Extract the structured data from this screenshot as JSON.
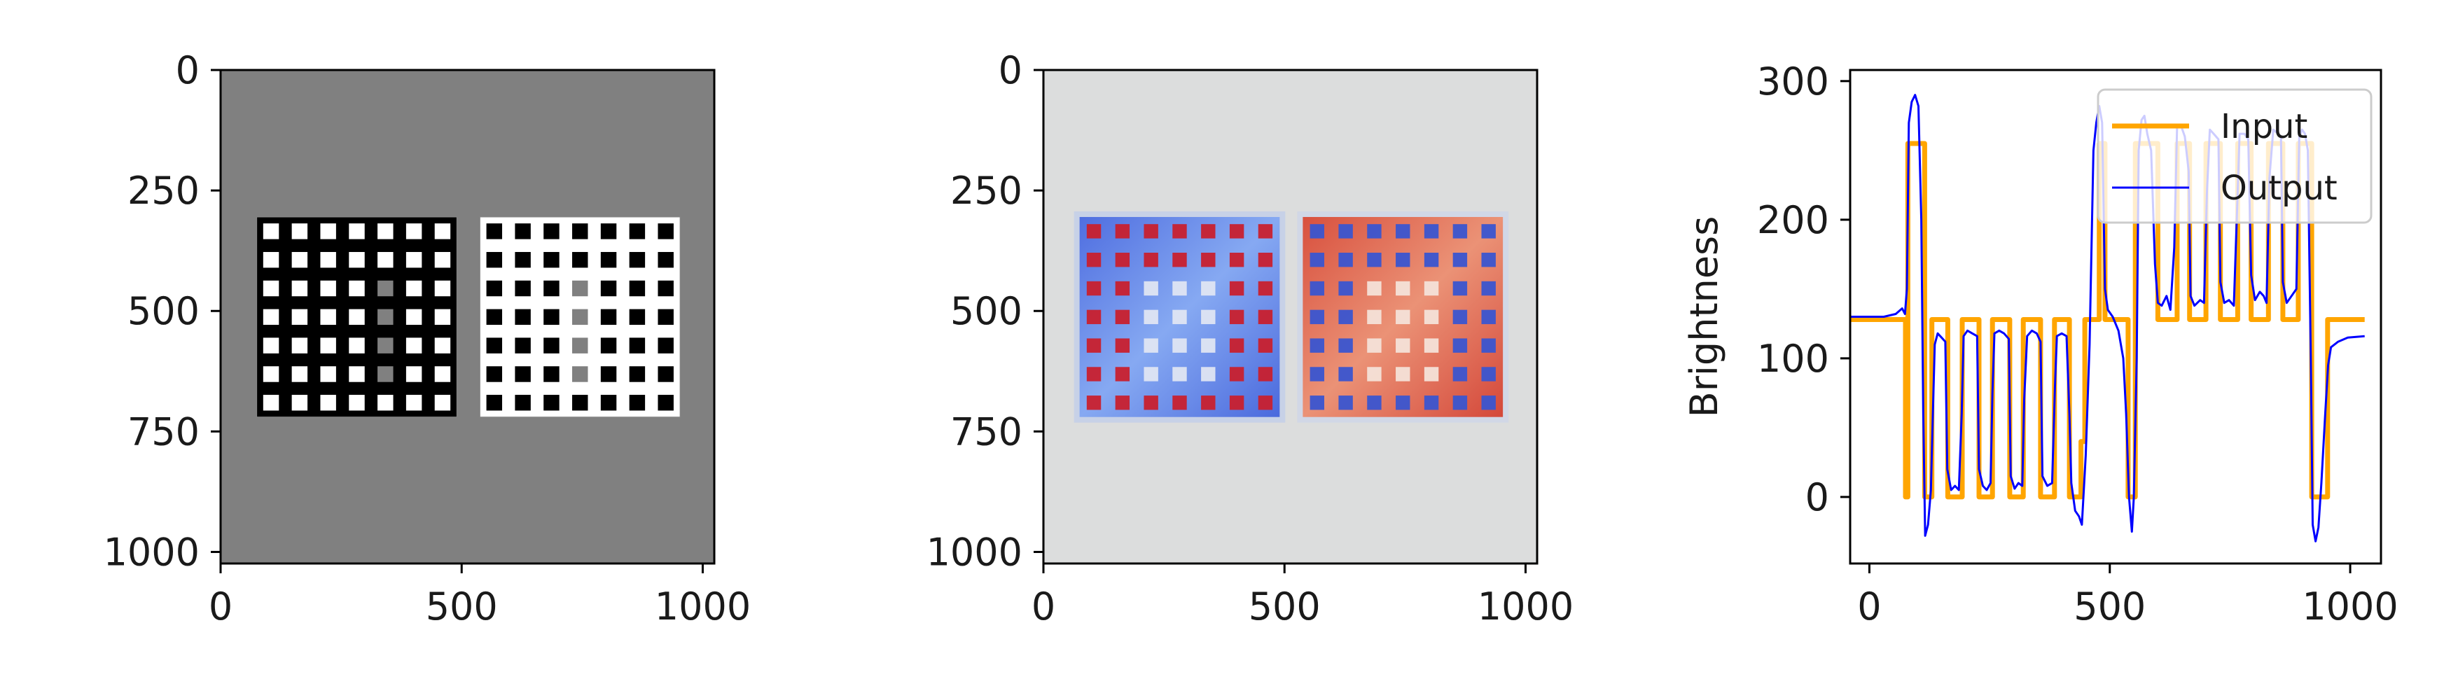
{
  "chart_data": [
    {
      "type": "heatmap",
      "panel": "input-image",
      "xlim": [
        0,
        1024
      ],
      "ylim": [
        1024,
        0
      ],
      "xticks": [
        0,
        500,
        1000
      ],
      "yticks": [
        0,
        250,
        500,
        750,
        1000
      ],
      "background_value": 128,
      "grids": [
        {
          "x": [
            75,
            490
          ],
          "y": [
            305,
            720
          ],
          "base_value": 0,
          "grey_column": 5
        },
        {
          "x": [
            538,
            953
          ],
          "y": [
            305,
            720
          ],
          "base_value": 255,
          "grey_column": 4
        }
      ],
      "grid_cells": 7,
      "grey_row_range": [
        2,
        5
      ],
      "colormap": "grey"
    },
    {
      "type": "heatmap",
      "panel": "output-image",
      "xlim": [
        0,
        1024
      ],
      "ylim": [
        1024,
        0
      ],
      "xticks": [
        0,
        500,
        1000
      ],
      "yticks": [
        0,
        250,
        500,
        750,
        1000
      ],
      "background_color": "#dcdddd",
      "colormap": "coolwarm",
      "grids": [
        {
          "x": [
            75,
            490
          ],
          "y": [
            305,
            720
          ],
          "tone": "cool",
          "dot_tone": "warm"
        },
        {
          "x": [
            538,
            953
          ],
          "y": [
            305,
            720
          ],
          "tone": "warm",
          "dot_tone": "cool"
        }
      ]
    },
    {
      "type": "line",
      "panel": "brightness-profile",
      "ylabel": "Brightness",
      "xlim": [
        -40,
        1064
      ],
      "ylim": [
        -48,
        308
      ],
      "xticks": [
        0,
        500,
        1000
      ],
      "yticks": [
        0,
        100,
        200,
        300
      ],
      "legend_position": "upper right",
      "series": [
        {
          "name": "Input",
          "color": "#ffa500",
          "points": [
            [
              -40,
              128
            ],
            [
              75,
              128
            ],
            [
              75,
              0
            ],
            [
              80,
              0
            ],
            [
              80,
              255
            ],
            [
              115,
              255
            ],
            [
              115,
              0
            ],
            [
              130,
              0
            ],
            [
              130,
              128
            ],
            [
              163,
              128
            ],
            [
              163,
              0
            ],
            [
              193,
              0
            ],
            [
              193,
              128
            ],
            [
              228,
              128
            ],
            [
              228,
              0
            ],
            [
              256,
              0
            ],
            [
              256,
              128
            ],
            [
              292,
              128
            ],
            [
              292,
              0
            ],
            [
              320,
              0
            ],
            [
              320,
              128
            ],
            [
              356,
              128
            ],
            [
              356,
              0
            ],
            [
              385,
              0
            ],
            [
              385,
              128
            ],
            [
              416,
              128
            ],
            [
              416,
              0
            ],
            [
              440,
              0
            ],
            [
              440,
              40
            ],
            [
              448,
              40
            ],
            [
              448,
              128
            ],
            [
              478,
              128
            ],
            [
              478,
              255
            ],
            [
              490,
              255
            ],
            [
              490,
              128
            ],
            [
              538,
              128
            ],
            [
              538,
              0
            ],
            [
              553,
              0
            ],
            [
              553,
              255
            ],
            [
              600,
              255
            ],
            [
              600,
              128
            ],
            [
              640,
              128
            ],
            [
              640,
              255
            ],
            [
              666,
              255
            ],
            [
              666,
              128
            ],
            [
              700,
              128
            ],
            [
              700,
              255
            ],
            [
              730,
              255
            ],
            [
              730,
              128
            ],
            [
              766,
              128
            ],
            [
              766,
              255
            ],
            [
              794,
              255
            ],
            [
              794,
              128
            ],
            [
              830,
              128
            ],
            [
              830,
              255
            ],
            [
              860,
              255
            ],
            [
              860,
              128
            ],
            [
              892,
              128
            ],
            [
              892,
              255
            ],
            [
              920,
              255
            ],
            [
              920,
              0
            ],
            [
              953,
              0
            ],
            [
              953,
              128
            ],
            [
              1030,
              128
            ]
          ]
        },
        {
          "name": "Output",
          "color": "#0000ff",
          "points": [
            [
              -40,
              130
            ],
            [
              30,
              130
            ],
            [
              55,
              132
            ],
            [
              68,
              136
            ],
            [
              74,
              132
            ],
            [
              78,
              150
            ],
            [
              82,
              270
            ],
            [
              88,
              285
            ],
            [
              95,
              290
            ],
            [
              102,
              282
            ],
            [
              108,
              200
            ],
            [
              112,
              60
            ],
            [
              116,
              -28
            ],
            [
              122,
              -20
            ],
            [
              128,
              5
            ],
            [
              132,
              60
            ],
            [
              136,
              110
            ],
            [
              142,
              118
            ],
            [
              150,
              115
            ],
            [
              158,
              112
            ],
            [
              162,
              20
            ],
            [
              170,
              5
            ],
            [
              178,
              8
            ],
            [
              186,
              5
            ],
            [
              192,
              60
            ],
            [
              196,
              116
            ],
            [
              204,
              120
            ],
            [
              214,
              118
            ],
            [
              224,
              116
            ],
            [
              228,
              20
            ],
            [
              236,
              8
            ],
            [
              244,
              5
            ],
            [
              252,
              10
            ],
            [
              256,
              75
            ],
            [
              260,
              118
            ],
            [
              270,
              120
            ],
            [
              280,
              118
            ],
            [
              290,
              114
            ],
            [
              294,
              15
            ],
            [
              302,
              6
            ],
            [
              310,
              10
            ],
            [
              318,
              8
            ],
            [
              322,
              70
            ],
            [
              328,
              116
            ],
            [
              338,
              120
            ],
            [
              348,
              118
            ],
            [
              356,
              112
            ],
            [
              360,
              15
            ],
            [
              370,
              8
            ],
            [
              380,
              10
            ],
            [
              386,
              80
            ],
            [
              390,
              116
            ],
            [
              400,
              118
            ],
            [
              410,
              116
            ],
            [
              416,
              60
            ],
            [
              420,
              10
            ],
            [
              428,
              -10
            ],
            [
              436,
              -14
            ],
            [
              442,
              -20
            ],
            [
              450,
              30
            ],
            [
              458,
              110
            ],
            [
              466,
              250
            ],
            [
              472,
              270
            ],
            [
              478,
              282
            ],
            [
              484,
              270
            ],
            [
              490,
              150
            ],
            [
              496,
              135
            ],
            [
              506,
              130
            ],
            [
              518,
              120
            ],
            [
              528,
              100
            ],
            [
              534,
              60
            ],
            [
              540,
              0
            ],
            [
              546,
              -25
            ],
            [
              550,
              0
            ],
            [
              556,
              100
            ],
            [
              560,
              250
            ],
            [
              566,
              272
            ],
            [
              572,
              275
            ],
            [
              578,
              262
            ],
            [
              586,
              250
            ],
            [
              594,
              168
            ],
            [
              600,
              140
            ],
            [
              608,
              138
            ],
            [
              618,
              145
            ],
            [
              626,
              135
            ],
            [
              634,
              180
            ],
            [
              640,
              268
            ],
            [
              648,
              268
            ],
            [
              656,
              260
            ],
            [
              664,
              235
            ],
            [
              668,
              145
            ],
            [
              676,
              138
            ],
            [
              688,
              142
            ],
            [
              696,
              140
            ],
            [
              702,
              220
            ],
            [
              708,
              265
            ],
            [
              716,
              262
            ],
            [
              726,
              258
            ],
            [
              730,
              155
            ],
            [
              738,
              140
            ],
            [
              748,
              142
            ],
            [
              758,
              138
            ],
            [
              766,
              220
            ],
            [
              770,
              262
            ],
            [
              780,
              262
            ],
            [
              788,
              258
            ],
            [
              794,
              160
            ],
            [
              802,
              142
            ],
            [
              812,
              148
            ],
            [
              820,
              145
            ],
            [
              826,
              140
            ],
            [
              832,
              230
            ],
            [
              840,
              265
            ],
            [
              850,
              262
            ],
            [
              856,
              260
            ],
            [
              860,
              155
            ],
            [
              868,
              140
            ],
            [
              878,
              145
            ],
            [
              888,
              150
            ],
            [
              894,
              260
            ],
            [
              900,
              265
            ],
            [
              906,
              262
            ],
            [
              912,
              250
            ],
            [
              918,
              100
            ],
            [
              922,
              -20
            ],
            [
              928,
              -32
            ],
            [
              934,
              -22
            ],
            [
              940,
              10
            ],
            [
              948,
              60
            ],
            [
              954,
              95
            ],
            [
              960,
              108
            ],
            [
              975,
              112
            ],
            [
              995,
              115
            ],
            [
              1030,
              116
            ]
          ]
        }
      ]
    }
  ]
}
